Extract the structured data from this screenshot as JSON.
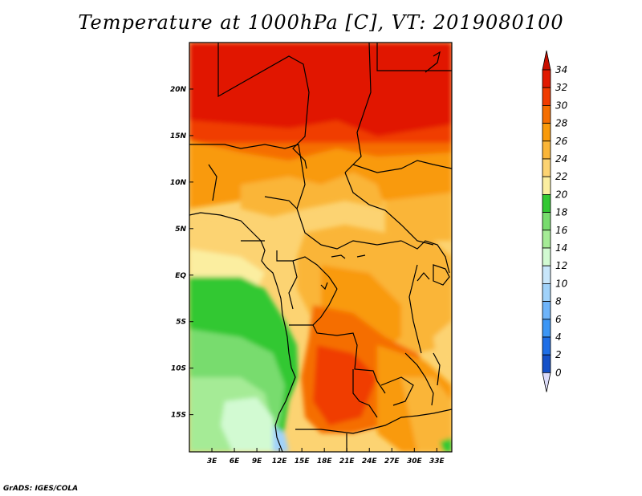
{
  "title": "Temperature at 1000hPa [C], VT: 2019080100",
  "credit": "GrADS: IGES/COLA",
  "map": {
    "lon_range": [
      0,
      35
    ],
    "lat_range": [
      -19,
      25
    ],
    "lon_ticks": [
      "3E",
      "6E",
      "9E",
      "12E",
      "15E",
      "18E",
      "21E",
      "24E",
      "27E",
      "30E",
      "33E"
    ],
    "lon_tick_values": [
      3,
      6,
      9,
      12,
      15,
      18,
      21,
      24,
      27,
      30,
      33
    ],
    "lat_ticks": [
      "20N",
      "15N",
      "10N",
      "5N",
      "EQ",
      "5S",
      "10S",
      "15S"
    ],
    "lat_tick_values": [
      20,
      15,
      10,
      5,
      0,
      -5,
      -10,
      -15
    ]
  },
  "colorbar": {
    "labels": [
      "34",
      "32",
      "30",
      "28",
      "26",
      "24",
      "22",
      "20",
      "18",
      "16",
      "14",
      "12",
      "10",
      "8",
      "6",
      "4",
      "2",
      "0"
    ],
    "colors": [
      "#e11900",
      "#f03c00",
      "#f56e00",
      "#f99a0a",
      "#fab538",
      "#fcd372",
      "#fbeea0",
      "#32c832",
      "#78dc6e",
      "#a5eb96",
      "#d2fad2",
      "#c8e6fa",
      "#a0d2fa",
      "#6eb4fa",
      "#3c96f5",
      "#1e6ee6",
      "#1450c8",
      "#0a1e78"
    ],
    "top_arrow_color": "#c80f00",
    "bottom_arrow_color": "#dcdcfa"
  }
}
